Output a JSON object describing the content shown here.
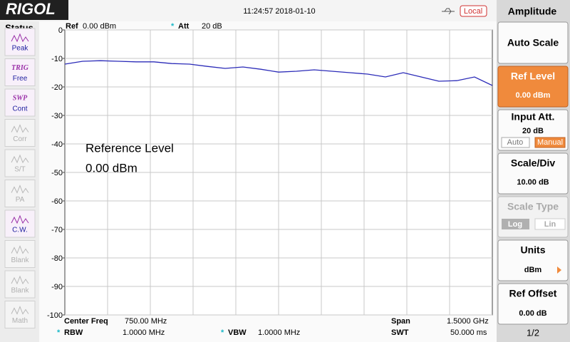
{
  "header": {
    "logo": "RIGOL",
    "datetime": "11:24:57 2018-01-10",
    "remote": "Local"
  },
  "status": {
    "title": "Status",
    "items": [
      {
        "label": "Peak"
      },
      {
        "top": "TRIG",
        "label": "Free"
      },
      {
        "top": "SWP",
        "label": "Cont"
      },
      {
        "label": "Corr"
      },
      {
        "label": "S/T"
      },
      {
        "label": "PA"
      },
      {
        "label": "C.W."
      },
      {
        "label": "Blank"
      },
      {
        "label": "Blank"
      },
      {
        "label": "Math"
      }
    ]
  },
  "info": {
    "ref_label": "Ref",
    "ref_value": "0.00 dBm",
    "att_flag": "*",
    "att_label": "Att",
    "att_value": "20 dB",
    "center_label": "Center Freq",
    "center_value": "750.00 MHz",
    "span_label": "Span",
    "span_value": "1.5000 GHz",
    "rbw_flag": "*",
    "rbw_label": "RBW",
    "rbw_value": "1.0000 MHz",
    "vbw_flag": "*",
    "vbw_label": "VBW",
    "vbw_value": "1.0000 MHz",
    "swt_label": "SWT",
    "swt_value": "50.000 ms"
  },
  "chart_data": {
    "type": "line",
    "color": "#2b2bb8",
    "values": [
      -12,
      -11,
      -10.8,
      -11,
      -11.2,
      -11.2,
      -11.8,
      -12,
      -12.8,
      -13.5,
      -13,
      -13.8,
      -14.8,
      -14.5,
      -14,
      -14.5,
      -15,
      -15.5,
      -16.5,
      -15,
      -16.5,
      -18,
      -17.8,
      -16.5,
      -19.5
    ],
    "ylim": [
      -100,
      0
    ],
    "yticks": [
      0,
      -10,
      -20,
      -30,
      -40,
      -50,
      -60,
      -70,
      -80,
      -90,
      -100
    ],
    "grid": true,
    "annotation": [
      "Reference Level",
      "0.00 dBm"
    ]
  },
  "menu": {
    "title": "Amplitude",
    "page": "1/2",
    "auto_scale": "Auto Scale",
    "ref_level": {
      "label": "Ref Level",
      "value": "0.00 dBm"
    },
    "input_att": {
      "label": "Input Att.",
      "value": "20 dB",
      "options": [
        "Auto",
        "Manual"
      ]
    },
    "scale_div": {
      "label": "Scale/Div",
      "value": "10.00 dB"
    },
    "scale_type": {
      "label": "Scale Type",
      "options": [
        "Log",
        "Lin"
      ]
    },
    "units": {
      "label": "Units",
      "value": "dBm"
    },
    "ref_offset": {
      "label": "Ref Offset",
      "value": "0.00 dB"
    }
  }
}
